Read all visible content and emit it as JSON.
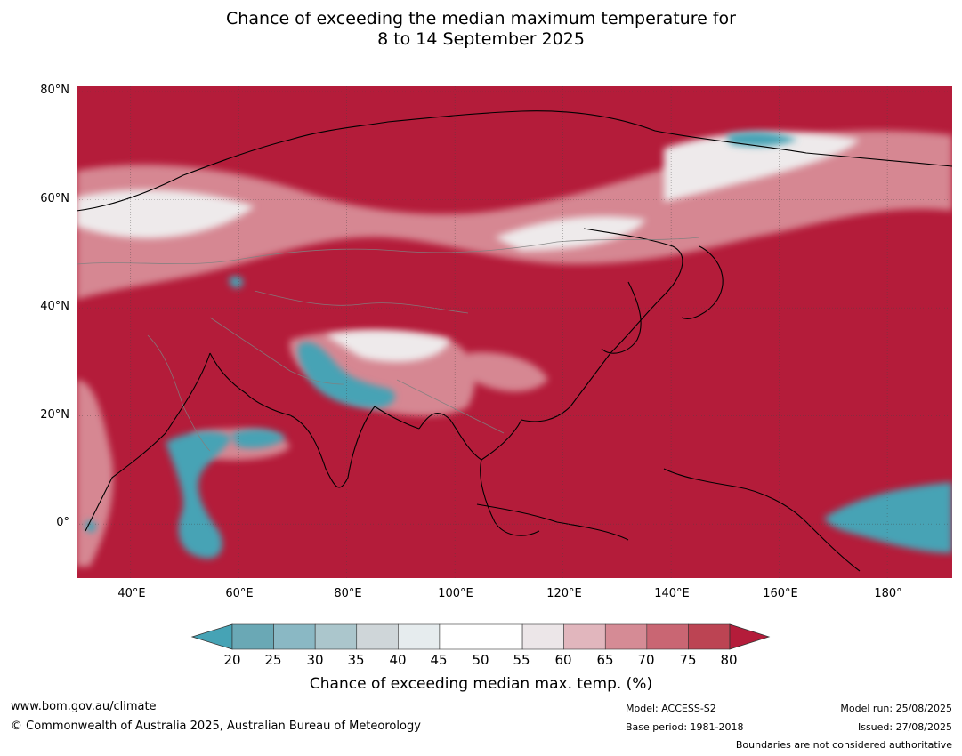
{
  "title": {
    "line1": "Chance of exceeding the median maximum temperature for",
    "line2": "8 to 14 September 2025"
  },
  "map": {
    "lat_labels": [
      "80°N",
      "60°N",
      "40°N",
      "20°N",
      "0°"
    ],
    "lon_labels": [
      "40°E",
      "60°E",
      "80°E",
      "100°E",
      "120°E",
      "140°E",
      "160°E",
      "180°"
    ],
    "lat_range": [
      -10,
      81
    ],
    "lon_range": [
      30,
      192
    ],
    "colors": {
      "high": "#b41c3a",
      "low": "#46a3b5"
    }
  },
  "colorbar": {
    "labels": [
      "20",
      "25",
      "30",
      "35",
      "40",
      "45",
      "50",
      "55",
      "60",
      "65",
      "70",
      "75",
      "80"
    ],
    "colors": [
      "#6aa8b5",
      "#8ab8c4",
      "#abc6cc",
      "#cfd6d9",
      "#e6ecee",
      "#ffffff",
      "#ffffff",
      "#ece6e8",
      "#e1b6bd",
      "#d58b95",
      "#c96673",
      "#bc4453"
    ],
    "low_extend_color": "#46a3b5",
    "high_extend_color": "#b41c3a",
    "title": "Chance of exceeding median max. temp. (%)"
  },
  "footer": {
    "url": "www.bom.gov.au/climate",
    "copyright": "© Commonwealth of Australia 2025, Australian Bureau of Meteorology",
    "model": "Model: ACCESS-S2",
    "base_period": "Base period: 1981-2018",
    "model_run": "Model run: 25/08/2025",
    "issued": "Issued: 27/08/2025",
    "boundaries": "Boundaries are not considered authoritative"
  }
}
